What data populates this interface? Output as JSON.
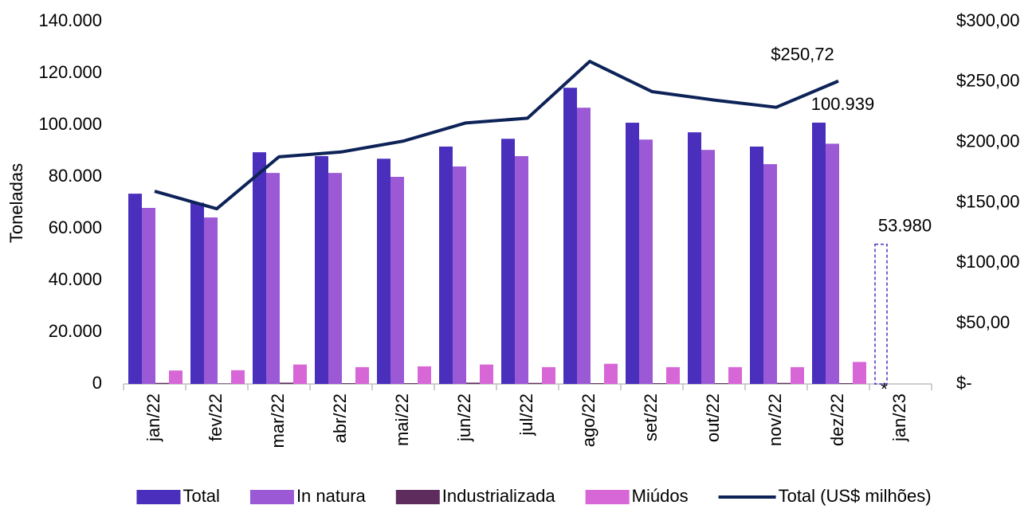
{
  "chart_data": {
    "type": "bar-line",
    "ylabel": "Toneladas",
    "categories": [
      "jan/22",
      "fev/22",
      "mar/22",
      "abr/22",
      "mai/22",
      "jun/22",
      "jul/22",
      "ago/22",
      "set/22",
      "out/22",
      "nov/22",
      "dez/22",
      "jan/23"
    ],
    "series": [
      {
        "name": "Total",
        "color": "#4a2fbd",
        "values": [
          73500,
          70000,
          89500,
          88000,
          87000,
          91700,
          94700,
          114400,
          100900,
          97200,
          91700,
          100939,
          53980
        ],
        "value_labels": [
          null,
          null,
          null,
          null,
          null,
          null,
          null,
          null,
          null,
          null,
          null,
          "100.939",
          "53.980"
        ],
        "outline_only_indices": [
          12
        ]
      },
      {
        "name": "In natura",
        "color": "#9b59d6",
        "values": [
          68000,
          64300,
          81500,
          81500,
          80000,
          84000,
          88000,
          106700,
          94400,
          90400,
          84900,
          92800,
          null
        ]
      },
      {
        "name": "Industrializada",
        "color": "#5e2d5e",
        "values": [
          400,
          200,
          500,
          300,
          300,
          500,
          400,
          300,
          300,
          300,
          400,
          300,
          null
        ]
      },
      {
        "name": "Miúdos",
        "color": "#d766d6",
        "values": [
          5200,
          5300,
          7500,
          6500,
          6800,
          7500,
          6500,
          7800,
          6500,
          6500,
          6500,
          8500,
          null
        ]
      },
      {
        "name": "Total (US$ milhões)",
        "color": "#0d2257",
        "axis": "y2",
        "kind": "line",
        "values": [
          159.5,
          145,
          188,
          192,
          201,
          216,
          220,
          267,
          242,
          235,
          229,
          250.72,
          null
        ],
        "value_labels": [
          null,
          null,
          null,
          null,
          null,
          null,
          null,
          null,
          null,
          null,
          null,
          "$250,72",
          null
        ]
      }
    ],
    "annotation": "*",
    "ylim": [
      0,
      140000
    ],
    "yticks": [
      0,
      {
        "value": 20000,
        "label": "20.000"
      },
      {
        "value": 40000,
        "label": "40.000"
      },
      {
        "value": 60000,
        "label": "60.000"
      },
      {
        "value": 80000,
        "label": "80.000"
      },
      {
        "value": 100000,
        "label": "100.000"
      },
      {
        "value": 120000,
        "label": "120.000"
      },
      {
        "value": 140000,
        "label": "140.000"
      }
    ],
    "y2lim": [
      0,
      300
    ],
    "y2ticks": [
      {
        "value": 0,
        "label": "$-"
      },
      {
        "value": 50,
        "label": "$50,00"
      },
      {
        "value": 100,
        "label": "$100,00"
      },
      {
        "value": 150,
        "label": "$150,00"
      },
      {
        "value": 200,
        "label": "$200,00"
      },
      {
        "value": 250,
        "label": "$250,00"
      },
      {
        "value": 300,
        "label": "$300,00"
      }
    ],
    "legend": "bottom"
  }
}
